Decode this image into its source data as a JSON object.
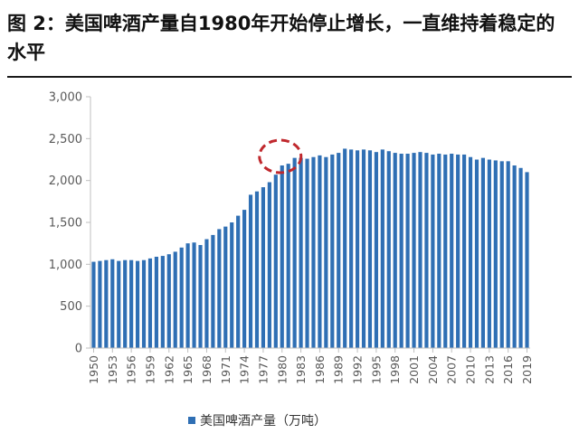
{
  "title": "图 2：美国啤酒产量自1980年开始停止增长，一直维持着稳定的水平",
  "legend_label": "美国啤酒产量（万吨）",
  "colors": {
    "bar": "#2F6FB4",
    "highlight": "#C0282D",
    "axis": "#bfbfbf",
    "text": "#595959"
  },
  "chart_data": {
    "type": "bar",
    "title": "",
    "xlabel": "",
    "ylabel": "",
    "ylim": [
      0,
      3000
    ],
    "yticks": [
      0,
      500,
      1000,
      1500,
      2000,
      2500,
      3000
    ],
    "ytick_labels": [
      "0",
      "500",
      "1,000",
      "1,500",
      "2,000",
      "2,500",
      "3,000"
    ],
    "xtick_labels": [
      "1950",
      "1953",
      "1956",
      "1959",
      "1962",
      "1965",
      "1968",
      "1971",
      "1974",
      "1977",
      "1980",
      "1983",
      "1986",
      "1989",
      "1992",
      "1995",
      "1998",
      "2001",
      "2004",
      "2007",
      "2010",
      "2013",
      "2016",
      "2019"
    ],
    "grid": false,
    "legend": "bottom",
    "highlight_year": 1980,
    "categories": [
      "1950",
      "1951",
      "1952",
      "1953",
      "1954",
      "1955",
      "1956",
      "1957",
      "1958",
      "1959",
      "1960",
      "1961",
      "1962",
      "1963",
      "1964",
      "1965",
      "1966",
      "1967",
      "1968",
      "1969",
      "1970",
      "1971",
      "1972",
      "1973",
      "1974",
      "1975",
      "1976",
      "1977",
      "1978",
      "1979",
      "1980",
      "1981",
      "1982",
      "1983",
      "1984",
      "1985",
      "1986",
      "1987",
      "1988",
      "1989",
      "1990",
      "1991",
      "1992",
      "1993",
      "1994",
      "1995",
      "1996",
      "1997",
      "1998",
      "1999",
      "2000",
      "2001",
      "2002",
      "2003",
      "2004",
      "2005",
      "2006",
      "2007",
      "2008",
      "2009",
      "2010",
      "2011",
      "2012",
      "2013",
      "2014",
      "2015",
      "2016",
      "2017",
      "2018",
      "2019"
    ],
    "series": [
      {
        "name": "美国啤酒产量（万吨）",
        "values": [
          1030,
          1040,
          1050,
          1060,
          1040,
          1050,
          1050,
          1040,
          1050,
          1070,
          1090,
          1100,
          1120,
          1150,
          1200,
          1250,
          1260,
          1230,
          1300,
          1350,
          1420,
          1450,
          1500,
          1580,
          1650,
          1830,
          1870,
          1920,
          1980,
          2070,
          2180,
          2200,
          2270,
          2270,
          2260,
          2280,
          2300,
          2280,
          2310,
          2330,
          2380,
          2370,
          2360,
          2370,
          2360,
          2340,
          2370,
          2350,
          2330,
          2320,
          2320,
          2330,
          2340,
          2330,
          2310,
          2320,
          2310,
          2320,
          2310,
          2310,
          2280,
          2250,
          2270,
          2250,
          2240,
          2230,
          2230,
          2180,
          2150,
          2100
        ]
      }
    ]
  }
}
